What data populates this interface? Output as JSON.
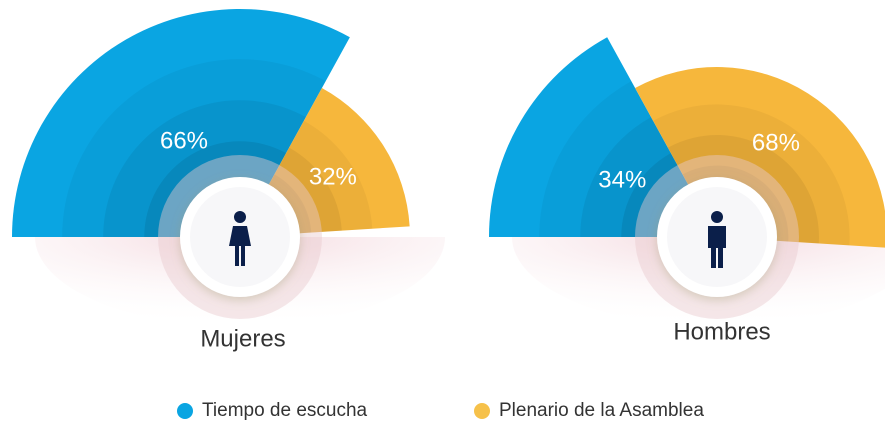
{
  "chart_data": [
    {
      "type": "pie",
      "title": "Mujeres",
      "values": [
        66,
        32
      ],
      "value_labels": [
        "66%",
        "32%"
      ],
      "colors": [
        "#0aa5e2",
        "#f6b73c"
      ]
    },
    {
      "type": "pie",
      "title": "Hombres",
      "values": [
        34,
        68
      ],
      "value_labels": [
        "34%",
        "68%"
      ],
      "colors": [
        "#0aa5e2",
        "#f6b73c"
      ]
    }
  ],
  "legend": [
    {
      "name": "Tiempo de escucha",
      "color": "#0aa5e2"
    },
    {
      "name": "Plenario de la Asamblea",
      "color": "#f6c14a"
    }
  ]
}
